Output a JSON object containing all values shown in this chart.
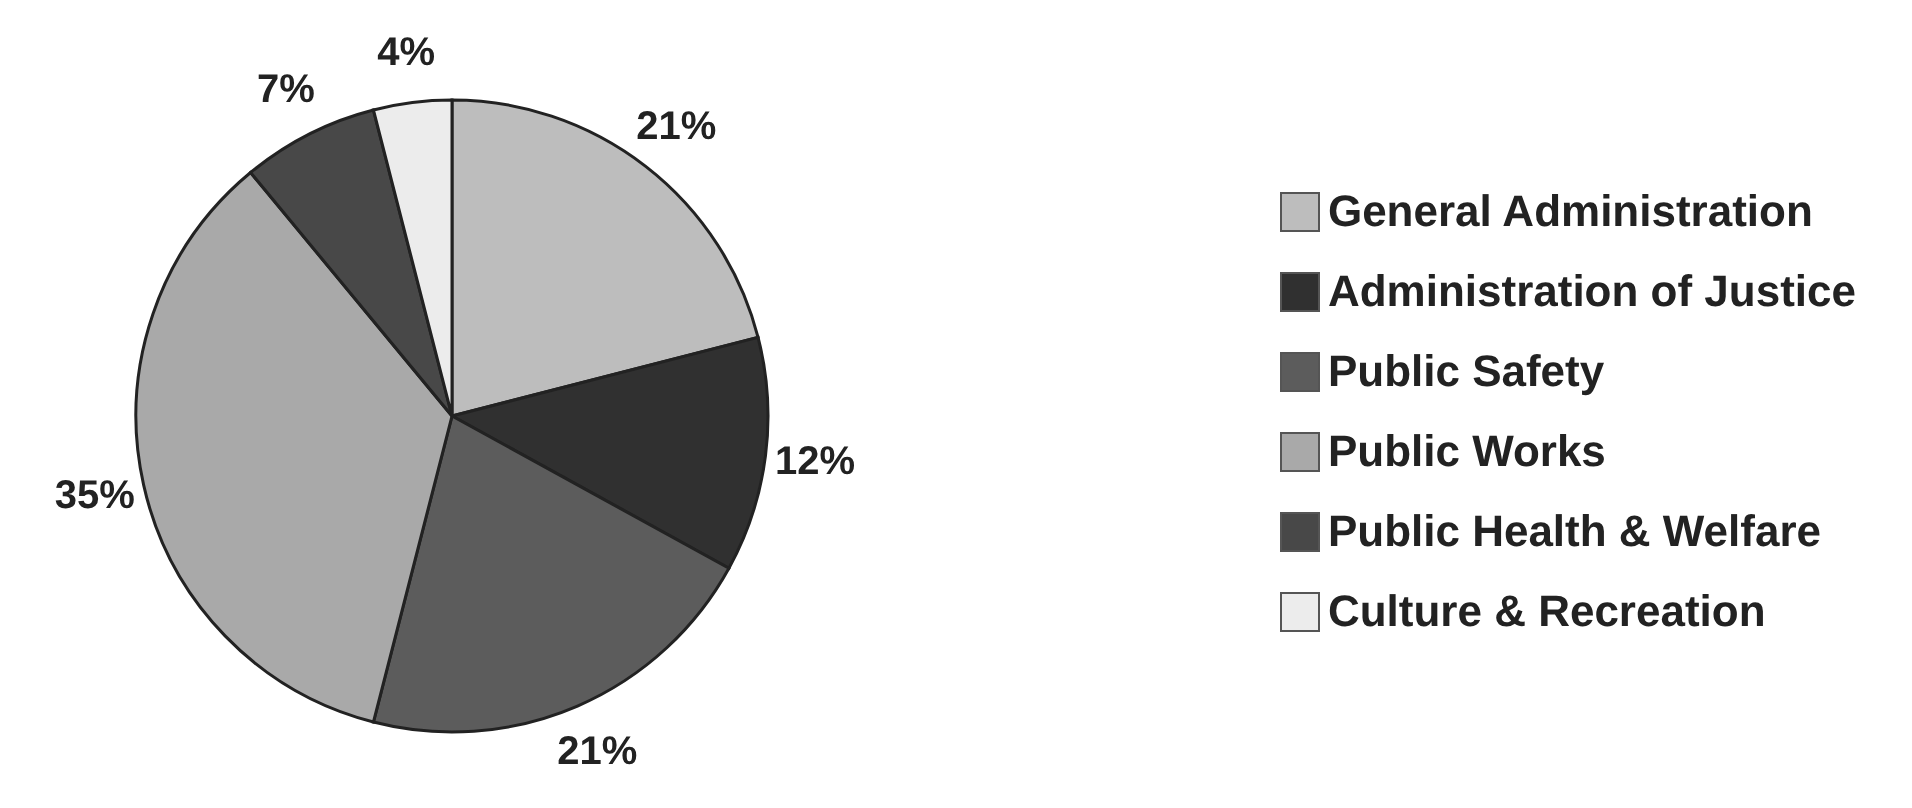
{
  "chart_data": {
    "type": "pie",
    "categories": [
      "General Administration",
      "Administration of Justice",
      "Public Safety",
      "Public Works",
      "Public Health & Welfare",
      "Culture & Recreation"
    ],
    "values": [
      21,
      12,
      21,
      35,
      7,
      4
    ],
    "value_labels": [
      "21%",
      "12%",
      "21%",
      "35%",
      "7%",
      "4%"
    ],
    "colors": [
      "#bdbdbd",
      "#303030",
      "#5c5c5c",
      "#a9a9a9",
      "#484848",
      "#ececec"
    ],
    "legend": "right"
  }
}
